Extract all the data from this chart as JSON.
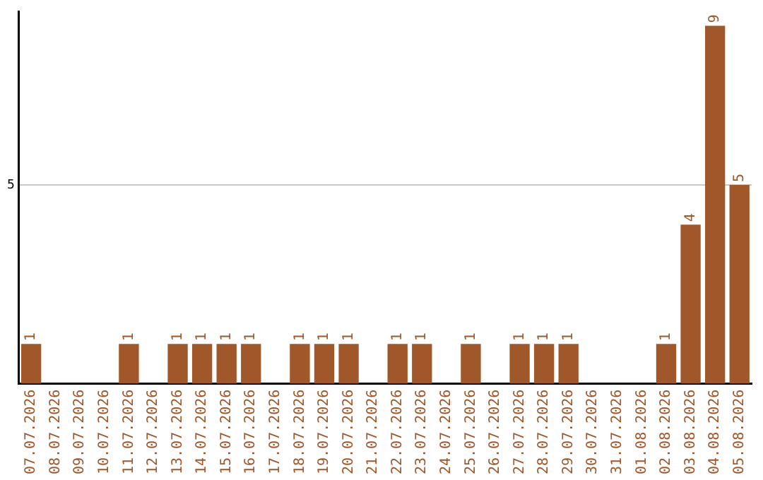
{
  "chart_data": {
    "type": "bar",
    "categories": [
      "07.07.2026",
      "08.07.2026",
      "09.07.2026",
      "10.07.2026",
      "11.07.2026",
      "12.07.2026",
      "13.07.2026",
      "14.07.2026",
      "15.07.2026",
      "16.07.2026",
      "17.07.2026",
      "18.07.2026",
      "19.07.2026",
      "20.07.2026",
      "21.07.2026",
      "22.07.2026",
      "23.07.2026",
      "24.07.2026",
      "25.07.2026",
      "26.07.2026",
      "27.07.2026",
      "28.07.2026",
      "29.07.2026",
      "30.07.2026",
      "31.07.2026",
      "01.08.2026",
      "02.08.2026",
      "03.08.2026",
      "04.08.2026",
      "05.08.2026"
    ],
    "values": [
      1,
      0,
      0,
      0,
      1,
      0,
      1,
      1,
      1,
      1,
      0,
      1,
      1,
      1,
      0,
      1,
      1,
      0,
      1,
      0,
      1,
      1,
      1,
      0,
      0,
      0,
      1,
      4,
      9,
      5
    ],
    "value_labels": [
      "1",
      null,
      null,
      null,
      "1",
      null,
      "1",
      "1",
      "1",
      "1",
      null,
      "1",
      "1",
      "1",
      null,
      "1",
      "1",
      null,
      "1",
      null,
      "1",
      "1",
      "1",
      null,
      null,
      null,
      "1",
      "4",
      "9",
      "5"
    ],
    "color": "#a0572a",
    "ylim": [
      0,
      9.35
    ],
    "yticks": [
      5
    ],
    "grid": "y",
    "legend": false
  }
}
